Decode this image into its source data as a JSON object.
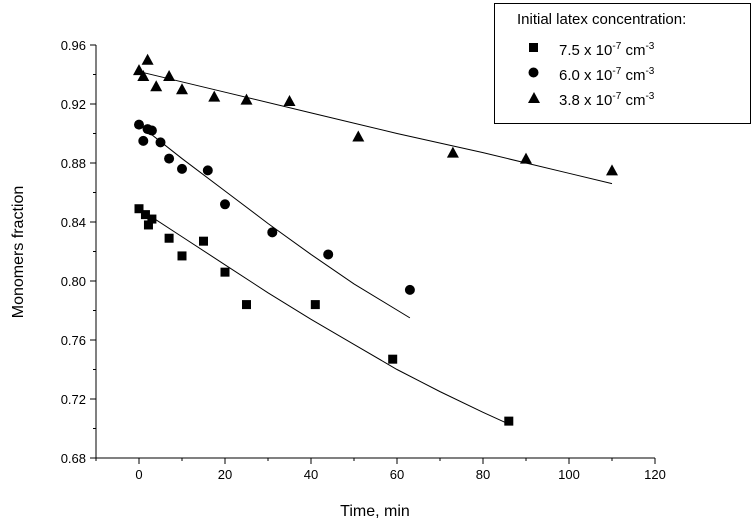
{
  "chart_data": {
    "type": "scatter",
    "xlabel": "Time, min",
    "ylabel": "Monomers fraction",
    "xlim": [
      -10,
      120
    ],
    "ylim": [
      0.68,
      0.96
    ],
    "xticks": [
      "0",
      "20",
      "40",
      "60",
      "80",
      "100",
      "120"
    ],
    "yticks": [
      "0.68",
      "0.72",
      "0.76",
      "0.80",
      "0.84",
      "0.88",
      "0.92",
      "0.96"
    ],
    "grid": false,
    "legend": {
      "title": "Initial latex concentration:",
      "placement": "top-right",
      "entries": [
        {
          "value": "7.5 x 10",
          "exp": "-7",
          "unit": " cm",
          "unit_exp": "-3",
          "marker": "square"
        },
        {
          "value": "6.0 x 10",
          "exp": "-7",
          "unit": " cm",
          "unit_exp": "-3",
          "marker": "circle"
        },
        {
          "value": "3.8 x 10",
          "exp": "-7",
          "unit": " cm",
          "unit_exp": "-3",
          "marker": "triangle"
        }
      ]
    },
    "series": [
      {
        "marker": "square",
        "points": [
          [
            0,
            0.849
          ],
          [
            1.5,
            0.845
          ],
          [
            2.2,
            0.838
          ],
          [
            3,
            0.842
          ],
          [
            7,
            0.829
          ],
          [
            10,
            0.817
          ],
          [
            15,
            0.827
          ],
          [
            20,
            0.806
          ],
          [
            25,
            0.784
          ],
          [
            41,
            0.784
          ],
          [
            59,
            0.747
          ],
          [
            86,
            0.705
          ]
        ],
        "fit": [
          [
            0,
            0.849
          ],
          [
            10,
            0.83
          ],
          [
            20,
            0.811
          ],
          [
            30,
            0.792
          ],
          [
            40,
            0.774
          ],
          [
            50,
            0.757
          ],
          [
            60,
            0.74
          ],
          [
            70,
            0.725
          ],
          [
            80,
            0.711
          ],
          [
            86,
            0.703
          ]
        ]
      },
      {
        "marker": "circle",
        "points": [
          [
            0,
            0.906
          ],
          [
            1,
            0.895
          ],
          [
            2,
            0.903
          ],
          [
            3,
            0.902
          ],
          [
            5,
            0.894
          ],
          [
            7,
            0.883
          ],
          [
            10,
            0.876
          ],
          [
            16,
            0.875
          ],
          [
            20,
            0.852
          ],
          [
            31,
            0.833
          ],
          [
            44,
            0.818
          ],
          [
            63,
            0.794
          ]
        ],
        "fit": [
          [
            0,
            0.906
          ],
          [
            10,
            0.883
          ],
          [
            20,
            0.861
          ],
          [
            30,
            0.839
          ],
          [
            40,
            0.818
          ],
          [
            50,
            0.798
          ],
          [
            63,
            0.775
          ]
        ]
      },
      {
        "marker": "triangle",
        "points": [
          [
            0,
            0.943
          ],
          [
            1,
            0.939
          ],
          [
            2,
            0.95
          ],
          [
            4,
            0.932
          ],
          [
            7,
            0.939
          ],
          [
            10,
            0.93
          ],
          [
            17.5,
            0.925
          ],
          [
            25,
            0.923
          ],
          [
            35,
            0.922
          ],
          [
            51,
            0.898
          ],
          [
            73,
            0.887
          ],
          [
            90,
            0.883
          ],
          [
            110,
            0.875
          ]
        ],
        "fit": [
          [
            0,
            0.942
          ],
          [
            20,
            0.928
          ],
          [
            40,
            0.914
          ],
          [
            60,
            0.9
          ],
          [
            80,
            0.887
          ],
          [
            100,
            0.873
          ],
          [
            110,
            0.866
          ]
        ]
      }
    ]
  }
}
